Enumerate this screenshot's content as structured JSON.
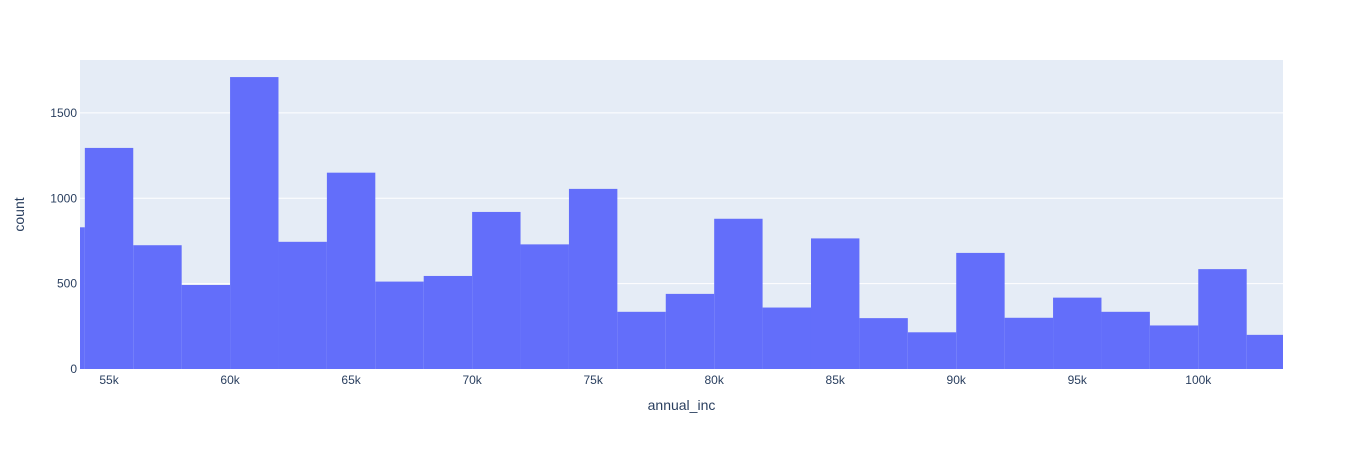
{
  "chart_data": {
    "type": "bar",
    "title": "",
    "xlabel": "annual_inc",
    "ylabel": "count",
    "bin_width": 2000,
    "xlim": [
      53800,
      103500
    ],
    "ylim": [
      0,
      1810
    ],
    "x_ticks": [
      {
        "value": 55000,
        "label": "55k"
      },
      {
        "value": 60000,
        "label": "60k"
      },
      {
        "value": 65000,
        "label": "65k"
      },
      {
        "value": 70000,
        "label": "70k"
      },
      {
        "value": 75000,
        "label": "75k"
      },
      {
        "value": 80000,
        "label": "80k"
      },
      {
        "value": 85000,
        "label": "85k"
      },
      {
        "value": 90000,
        "label": "90k"
      },
      {
        "value": 95000,
        "label": "95k"
      },
      {
        "value": 100000,
        "label": "100k"
      }
    ],
    "y_ticks": [
      {
        "value": 0,
        "label": "0"
      },
      {
        "value": 500,
        "label": "500"
      },
      {
        "value": 1000,
        "label": "1000"
      },
      {
        "value": 1500,
        "label": "1500"
      }
    ],
    "bins": [
      {
        "x0": 52000,
        "x1": 54000,
        "count": 830
      },
      {
        "x0": 54000,
        "x1": 56000,
        "count": 1295
      },
      {
        "x0": 56000,
        "x1": 58000,
        "count": 725
      },
      {
        "x0": 58000,
        "x1": 60000,
        "count": 492
      },
      {
        "x0": 60000,
        "x1": 62000,
        "count": 1710
      },
      {
        "x0": 62000,
        "x1": 64000,
        "count": 745
      },
      {
        "x0": 64000,
        "x1": 66000,
        "count": 1150
      },
      {
        "x0": 66000,
        "x1": 68000,
        "count": 512
      },
      {
        "x0": 68000,
        "x1": 70000,
        "count": 545
      },
      {
        "x0": 70000,
        "x1": 72000,
        "count": 920
      },
      {
        "x0": 72000,
        "x1": 74000,
        "count": 730
      },
      {
        "x0": 74000,
        "x1": 76000,
        "count": 1055
      },
      {
        "x0": 76000,
        "x1": 78000,
        "count": 335
      },
      {
        "x0": 78000,
        "x1": 80000,
        "count": 440
      },
      {
        "x0": 80000,
        "x1": 82000,
        "count": 880
      },
      {
        "x0": 82000,
        "x1": 84000,
        "count": 360
      },
      {
        "x0": 84000,
        "x1": 86000,
        "count": 765
      },
      {
        "x0": 86000,
        "x1": 88000,
        "count": 298
      },
      {
        "x0": 88000,
        "x1": 90000,
        "count": 215
      },
      {
        "x0": 90000,
        "x1": 92000,
        "count": 680
      },
      {
        "x0": 92000,
        "x1": 94000,
        "count": 300
      },
      {
        "x0": 94000,
        "x1": 96000,
        "count": 418
      },
      {
        "x0": 96000,
        "x1": 98000,
        "count": 335
      },
      {
        "x0": 98000,
        "x1": 100000,
        "count": 255
      },
      {
        "x0": 100000,
        "x1": 102000,
        "count": 585
      },
      {
        "x0": 102000,
        "x1": 104000,
        "count": 200
      }
    ],
    "colors": {
      "bar": "#636efa",
      "plot_background": "#e5ecf6",
      "grid": "#ffffff",
      "text": "#2a3f5f"
    },
    "grid": true,
    "legend": "none"
  }
}
